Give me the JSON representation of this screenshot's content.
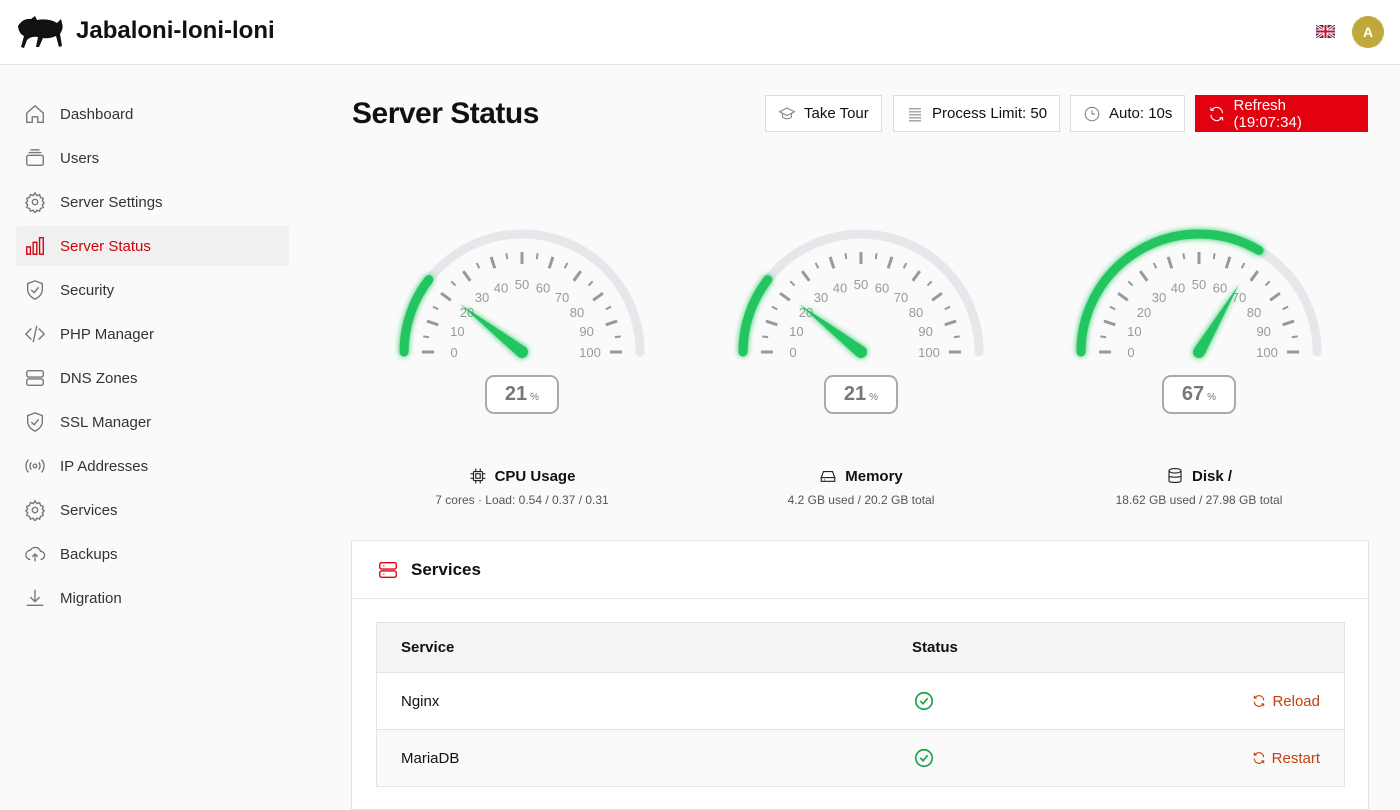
{
  "app": {
    "title": "Jabaloni-loni-loni",
    "language": "en-GB",
    "user_initial": "A",
    "avatar_color": "#bfa93d"
  },
  "sidebar": {
    "items": [
      {
        "label": "Dashboard",
        "icon": "home-icon"
      },
      {
        "label": "Users",
        "icon": "users-icon"
      },
      {
        "label": "Server Settings",
        "icon": "gear-icon"
      },
      {
        "label": "Server Status",
        "icon": "bar-chart-icon",
        "active": true
      },
      {
        "label": "Security",
        "icon": "shield-icon"
      },
      {
        "label": "PHP Manager",
        "icon": "code-icon"
      },
      {
        "label": "DNS Zones",
        "icon": "server-icon"
      },
      {
        "label": "SSL Manager",
        "icon": "shield-check-icon"
      },
      {
        "label": "IP Addresses",
        "icon": "broadcast-icon"
      },
      {
        "label": "Services",
        "icon": "gear-icon"
      },
      {
        "label": "Backups",
        "icon": "cloud-upload-icon"
      },
      {
        "label": "Migration",
        "icon": "download-icon"
      }
    ]
  },
  "page": {
    "title": "Server Status"
  },
  "toolbar": {
    "tour": "Take Tour",
    "process_limit": "Process Limit: 50",
    "auto": "Auto: 10s",
    "refresh": "Refresh (19:07:34)",
    "accent": "#e3000f"
  },
  "gauges": [
    {
      "value": 21,
      "unit": "%",
      "title": "CPU Usage",
      "subtitle": "7 cores · Load: 0.54 / 0.37 / 0.31",
      "icon": "cpu-icon"
    },
    {
      "value": 21,
      "unit": "%",
      "title": "Memory",
      "subtitle": "4.2 GB used / 20.2 GB total",
      "icon": "hard-drive-icon"
    },
    {
      "value": 67,
      "unit": "%",
      "title": "Disk /",
      "subtitle": "18.62 GB used / 27.98 GB total",
      "icon": "database-icon"
    }
  ],
  "gauge_scale": [
    "0",
    "10",
    "20",
    "30",
    "40",
    "50",
    "60",
    "70",
    "80",
    "90",
    "100"
  ],
  "gauge_color": "#22c55e",
  "services": {
    "title": "Services",
    "headers": [
      "Service",
      "Status"
    ],
    "rows": [
      {
        "name": "Nginx",
        "status": "running",
        "action": "Reload"
      },
      {
        "name": "MariaDB",
        "status": "running",
        "action": "Restart"
      }
    ]
  }
}
